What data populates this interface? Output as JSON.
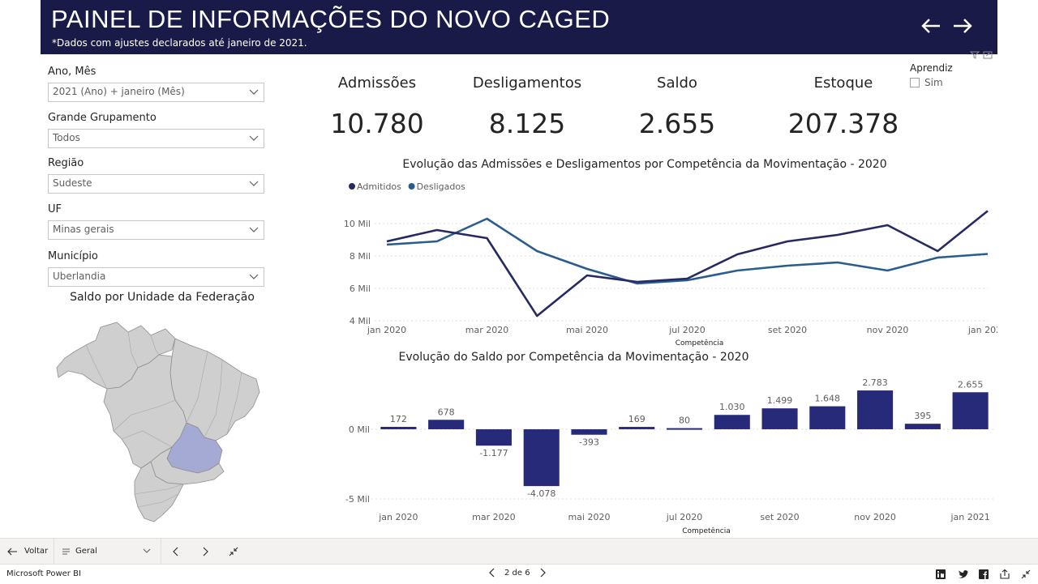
{
  "banner": {
    "title": "PAINEL DE INFORMAÇÕES DO NOVO CAGED",
    "subtitle": "*Dados com ajustes declarados até janeiro de 2021."
  },
  "slicers": [
    {
      "label": "Ano, Mês",
      "value": "2021 (Ano) + janeiro (Mês)"
    },
    {
      "label": "Grande Grupamento",
      "value": "Todos"
    },
    {
      "label": "Região",
      "value": "Sudeste"
    },
    {
      "label": "UF",
      "value": "Minas gerais"
    },
    {
      "label": "Município",
      "value": "Uberlandia"
    }
  ],
  "map": {
    "title": "Saldo por Unidade da Federação",
    "base_color": "#cfcfcf",
    "highlight_color": "#a4aad3"
  },
  "kpis": [
    {
      "label": "Admissões",
      "value": "10.780"
    },
    {
      "label": "Desligamentos",
      "value": "8.125"
    },
    {
      "label": "Saldo",
      "value": "2.655"
    },
    {
      "label": "Estoque",
      "value": "207.378"
    }
  ],
  "aprendiz": {
    "label": "Aprendiz",
    "option": "Sim"
  },
  "line_chart_title": "Evolução das Admissões e Desligamentos por Competência da Movimentação - 2020",
  "bar_chart_title": "Evolução do Saldo por Competência da Movimentação - 2020",
  "chart_data": [
    {
      "type": "line",
      "title": "Evolução das Admissões e Desligamentos por Competência da Movimentação - 2020",
      "xlabel": "Competência",
      "ylabel": "",
      "categories": [
        "jan 2020",
        "fev 2020",
        "mar 2020",
        "abr 2020",
        "mai 2020",
        "jun 2020",
        "jul 2020",
        "ago 2020",
        "set 2020",
        "out 2020",
        "nov 2020",
        "dez 2020",
        "jan 2021"
      ],
      "x_tick_labels": [
        "jan 2020",
        "mar 2020",
        "mai 2020",
        "jul 2020",
        "set 2020",
        "nov 2020",
        "jan 2021"
      ],
      "y_ticks": [
        4000,
        6000,
        8000,
        10000
      ],
      "y_tick_labels": [
        "4 Mil",
        "6 Mil",
        "8 Mil",
        "10 Mil"
      ],
      "ylim": [
        4000,
        11300
      ],
      "legend": "top-left",
      "grid": true,
      "series": [
        {
          "name": "Admitidos",
          "color": "#262a63",
          "values": [
            8900,
            9600,
            9100,
            4300,
            6800,
            6400,
            6600,
            8100,
            8900,
            9300,
            9900,
            8300,
            10780
          ]
        },
        {
          "name": "Desligados",
          "color": "#2b5c8f",
          "values": [
            8700,
            8900,
            10300,
            8300,
            7200,
            6300,
            6500,
            7100,
            7400,
            7600,
            7100,
            7900,
            8125
          ]
        }
      ]
    },
    {
      "type": "bar",
      "title": "Evolução do Saldo por Competência da Movimentação - 2020",
      "xlabel": "Competência",
      "ylabel": "",
      "categories": [
        "jan 2020",
        "fev 2020",
        "mar 2020",
        "abr 2020",
        "mai 2020",
        "jun 2020",
        "jul 2020",
        "ago 2020",
        "set 2020",
        "out 2020",
        "nov 2020",
        "dez 2020",
        "jan 2021"
      ],
      "x_tick_labels": [
        "jan 2020",
        "mar 2020",
        "mai 2020",
        "jul 2020",
        "set 2020",
        "nov 2020",
        "jan 2021"
      ],
      "values": [
        172,
        678,
        -1177,
        -4078,
        -393,
        169,
        80,
        1030,
        1499,
        1648,
        2783,
        395,
        2655
      ],
      "value_labels": [
        "172",
        "678",
        "-1.177",
        "-4.078",
        "-393",
        "169",
        "80",
        "1.030",
        "1.499",
        "1.648",
        "2.783",
        "395",
        "2.655"
      ],
      "y_ticks": [
        -5000,
        0
      ],
      "y_tick_labels": [
        "-5 Mil",
        "0 Mil"
      ],
      "ylim": [
        -5000,
        3600
      ],
      "color": "#262a78",
      "grid": true
    }
  ],
  "footer": {
    "back_label": "Voltar",
    "page_select": "Geral",
    "page_indicator": "2 de 6",
    "brand": "Microsoft Power BI"
  }
}
